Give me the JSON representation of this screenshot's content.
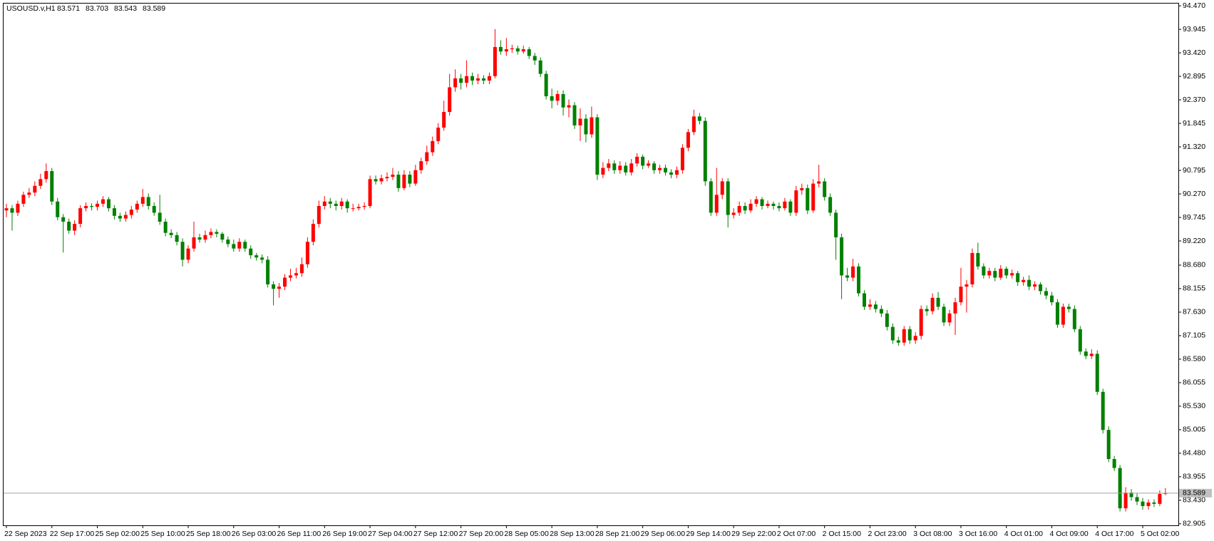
{
  "chart_data": {
    "type": "candlestick",
    "symbol": "USOUSD.v,H1",
    "up_color": "#ff0000",
    "down_color": "#008000",
    "grid": false,
    "ylim": [
      82.87,
      94.52
    ],
    "yticks": [
      {
        "value": 94.47,
        "label": "94.470"
      },
      {
        "value": 93.945,
        "label": "93.945"
      },
      {
        "value": 93.42,
        "label": "93.420"
      },
      {
        "value": 92.895,
        "label": "92.895"
      },
      {
        "value": 92.37,
        "label": "92.370"
      },
      {
        "value": 91.845,
        "label": "91.845"
      },
      {
        "value": 91.32,
        "label": "91.320"
      },
      {
        "value": 90.795,
        "label": "90.795"
      },
      {
        "value": 90.27,
        "label": "90.270"
      },
      {
        "value": 89.745,
        "label": "89.745"
      },
      {
        "value": 89.22,
        "label": "89.220"
      },
      {
        "value": 88.68,
        "label": "88.680"
      },
      {
        "value": 88.155,
        "label": "88.155"
      },
      {
        "value": 87.63,
        "label": "87.630"
      },
      {
        "value": 87.105,
        "label": "87.105"
      },
      {
        "value": 86.58,
        "label": "86.580"
      },
      {
        "value": 86.055,
        "label": "86.055"
      },
      {
        "value": 85.53,
        "label": "85.530"
      },
      {
        "value": 85.005,
        "label": "85.005"
      },
      {
        "value": 84.48,
        "label": "84.480"
      },
      {
        "value": 83.955,
        "label": "83.955"
      },
      {
        "value": 83.43,
        "label": "83.430"
      },
      {
        "value": 82.905,
        "label": "82.905"
      }
    ],
    "categories": [
      "22 Sep 2023",
      null,
      null,
      null,
      null,
      null,
      null,
      null,
      "22 Sep 17:00",
      null,
      null,
      null,
      null,
      null,
      null,
      null,
      "25 Sep 02:00",
      null,
      null,
      null,
      null,
      null,
      null,
      null,
      "25 Sep 10:00",
      null,
      null,
      null,
      null,
      null,
      null,
      null,
      "25 Sep 18:00",
      null,
      null,
      null,
      null,
      null,
      null,
      null,
      "26 Sep 03:00",
      null,
      null,
      null,
      null,
      null,
      null,
      null,
      "26 Sep 11:00",
      null,
      null,
      null,
      null,
      null,
      null,
      null,
      "26 Sep 19:00",
      null,
      null,
      null,
      null,
      null,
      null,
      null,
      "27 Sep 04:00",
      null,
      null,
      null,
      null,
      null,
      null,
      null,
      "27 Sep 12:00",
      null,
      null,
      null,
      null,
      null,
      null,
      null,
      "27 Sep 20:00",
      null,
      null,
      null,
      null,
      null,
      null,
      null,
      "28 Sep 05:00",
      null,
      null,
      null,
      null,
      null,
      null,
      null,
      "28 Sep 13:00",
      null,
      null,
      null,
      null,
      null,
      null,
      null,
      "28 Sep 21:00",
      null,
      null,
      null,
      null,
      null,
      null,
      null,
      "29 Sep 06:00",
      null,
      null,
      null,
      null,
      null,
      null,
      null,
      "29 Sep 14:00",
      null,
      null,
      null,
      null,
      null,
      null,
      null,
      "29 Sep 22:00",
      null,
      null,
      null,
      null,
      null,
      null,
      null,
      "2 Oct 07:00",
      null,
      null,
      null,
      null,
      null,
      null,
      null,
      "2 Oct 15:00",
      null,
      null,
      null,
      null,
      null,
      null,
      null,
      "2 Oct 23:00",
      null,
      null,
      null,
      null,
      null,
      null,
      null,
      "3 Oct 08:00",
      null,
      null,
      null,
      null,
      null,
      null,
      null,
      "3 Oct 16:00",
      null,
      null,
      null,
      null,
      null,
      null,
      null,
      "4 Oct 01:00",
      null,
      null,
      null,
      null,
      null,
      null,
      null,
      "4 Oct 09:00",
      null,
      null,
      null,
      null,
      null,
      null,
      null,
      "4 Oct 17:00",
      null,
      null,
      null,
      null,
      null,
      null,
      null,
      "5 Oct 02:00",
      null,
      null,
      null,
      null
    ],
    "ohlc": [
      [
        89.9,
        90.05,
        89.75,
        89.95
      ],
      [
        89.95,
        90.02,
        89.45,
        89.85
      ],
      [
        89.85,
        90.12,
        89.78,
        90.05
      ],
      [
        90.05,
        90.32,
        89.98,
        90.25
      ],
      [
        90.25,
        90.4,
        90.18,
        90.3
      ],
      [
        90.3,
        90.55,
        90.22,
        90.45
      ],
      [
        90.45,
        90.72,
        90.38,
        90.6
      ],
      [
        90.6,
        90.95,
        90.52,
        90.78
      ],
      [
        90.78,
        90.85,
        90.02,
        90.1
      ],
      [
        90.1,
        90.18,
        89.68,
        89.75
      ],
      [
        89.75,
        89.82,
        88.96,
        89.65
      ],
      [
        89.65,
        89.72,
        89.38,
        89.45
      ],
      [
        89.45,
        89.68,
        89.35,
        89.6
      ],
      [
        89.6,
        90.02,
        89.52,
        89.95
      ],
      [
        89.95,
        90.08,
        89.88,
        90.0
      ],
      [
        90.0,
        90.06,
        89.9,
        89.98
      ],
      [
        89.98,
        90.12,
        89.9,
        90.05
      ],
      [
        90.05,
        90.22,
        89.98,
        90.15
      ],
      [
        90.15,
        90.2,
        89.88,
        89.95
      ],
      [
        89.95,
        90.02,
        89.7,
        89.78
      ],
      [
        89.78,
        89.85,
        89.65,
        89.72
      ],
      [
        89.72,
        89.88,
        89.65,
        89.8
      ],
      [
        89.8,
        90.0,
        89.72,
        89.92
      ],
      [
        89.92,
        90.12,
        89.85,
        90.05
      ],
      [
        90.05,
        90.38,
        89.98,
        90.2
      ],
      [
        90.2,
        90.28,
        89.92,
        90.0
      ],
      [
        90.0,
        90.08,
        89.78,
        89.85
      ],
      [
        89.85,
        90.25,
        89.58,
        89.65
      ],
      [
        89.65,
        89.72,
        89.32,
        89.4
      ],
      [
        89.4,
        89.48,
        89.28,
        89.35
      ],
      [
        89.35,
        89.42,
        89.12,
        89.2
      ],
      [
        89.2,
        89.28,
        88.65,
        88.8
      ],
      [
        88.8,
        89.12,
        88.72,
        89.05
      ],
      [
        89.05,
        89.65,
        88.98,
        89.3
      ],
      [
        89.3,
        89.38,
        89.18,
        89.25
      ],
      [
        89.25,
        89.45,
        89.18,
        89.35
      ],
      [
        89.35,
        89.5,
        89.28,
        89.42
      ],
      [
        89.42,
        89.48,
        89.3,
        89.38
      ],
      [
        89.38,
        89.42,
        89.18,
        89.25
      ],
      [
        89.25,
        89.32,
        89.08,
        89.15
      ],
      [
        89.15,
        89.25,
        88.98,
        89.05
      ],
      [
        89.05,
        89.28,
        88.98,
        89.2
      ],
      [
        89.2,
        89.25,
        88.98,
        89.05
      ],
      [
        89.05,
        89.12,
        88.82,
        88.9
      ],
      [
        88.9,
        88.95,
        88.78,
        88.85
      ],
      [
        88.85,
        88.92,
        88.72,
        88.8
      ],
      [
        88.8,
        88.88,
        88.18,
        88.25
      ],
      [
        88.25,
        88.32,
        87.78,
        88.15
      ],
      [
        88.15,
        88.28,
        87.95,
        88.2
      ],
      [
        88.2,
        88.48,
        88.12,
        88.4
      ],
      [
        88.4,
        88.6,
        88.32,
        88.45
      ],
      [
        88.45,
        88.62,
        88.38,
        88.5
      ],
      [
        88.5,
        88.85,
        88.42,
        88.7
      ],
      [
        88.7,
        89.3,
        88.62,
        89.2
      ],
      [
        89.2,
        89.7,
        89.12,
        89.6
      ],
      [
        89.6,
        90.12,
        89.52,
        90.0
      ],
      [
        90.0,
        90.22,
        89.92,
        90.1
      ],
      [
        90.1,
        90.18,
        89.95,
        90.05
      ],
      [
        90.05,
        90.12,
        89.9,
        90.0
      ],
      [
        90.0,
        90.18,
        89.92,
        90.1
      ],
      [
        90.1,
        90.15,
        89.85,
        89.95
      ],
      [
        89.95,
        90.05,
        89.88,
        89.95
      ],
      [
        89.95,
        90.05,
        89.9,
        89.98
      ],
      [
        89.98,
        90.08,
        89.92,
        90.0
      ],
      [
        90.0,
        90.68,
        89.95,
        90.6
      ],
      [
        90.6,
        90.68,
        90.48,
        90.55
      ],
      [
        90.55,
        90.7,
        90.48,
        90.62
      ],
      [
        90.62,
        90.75,
        90.55,
        90.65
      ],
      [
        90.65,
        90.85,
        90.58,
        90.7
      ],
      [
        90.7,
        90.78,
        90.32,
        90.4
      ],
      [
        90.4,
        90.8,
        90.35,
        90.7
      ],
      [
        90.7,
        90.78,
        90.42,
        90.5
      ],
      [
        90.5,
        90.92,
        90.45,
        90.8
      ],
      [
        90.8,
        91.08,
        90.72,
        91.0
      ],
      [
        91.0,
        91.35,
        90.92,
        91.2
      ],
      [
        91.2,
        91.55,
        91.12,
        91.45
      ],
      [
        91.45,
        91.85,
        91.38,
        91.75
      ],
      [
        91.75,
        92.35,
        91.68,
        92.1
      ],
      [
        92.1,
        92.95,
        92.02,
        92.65
      ],
      [
        92.65,
        93.05,
        92.55,
        92.85
      ],
      [
        92.85,
        92.95,
        92.6,
        92.75
      ],
      [
        92.75,
        93.25,
        92.65,
        92.9
      ],
      [
        92.9,
        92.98,
        92.7,
        92.8
      ],
      [
        92.8,
        92.95,
        92.72,
        92.85
      ],
      [
        92.85,
        92.92,
        92.72,
        92.8
      ],
      [
        92.8,
        92.98,
        92.72,
        92.9
      ],
      [
        92.9,
        93.95,
        92.85,
        93.55
      ],
      [
        93.55,
        93.7,
        93.38,
        93.45
      ],
      [
        93.45,
        93.75,
        93.35,
        93.5
      ],
      [
        93.5,
        93.6,
        93.42,
        93.52
      ],
      [
        93.52,
        93.58,
        93.38,
        93.45
      ],
      [
        93.45,
        93.58,
        93.4,
        93.5
      ],
      [
        93.5,
        93.55,
        93.28,
        93.35
      ],
      [
        93.35,
        93.42,
        93.15,
        93.25
      ],
      [
        93.25,
        93.32,
        92.88,
        92.95
      ],
      [
        92.95,
        93.02,
        92.38,
        92.45
      ],
      [
        92.45,
        92.62,
        92.18,
        92.35
      ],
      [
        92.35,
        92.58,
        92.25,
        92.5
      ],
      [
        92.5,
        92.58,
        92.02,
        92.2
      ],
      [
        92.2,
        92.38,
        91.98,
        92.25
      ],
      [
        92.25,
        92.32,
        91.72,
        91.8
      ],
      [
        91.8,
        92.18,
        91.45,
        91.95
      ],
      [
        91.95,
        92.05,
        91.42,
        91.6
      ],
      [
        91.6,
        92.22,
        91.52,
        91.98
      ],
      [
        91.98,
        92.05,
        90.58,
        90.7
      ],
      [
        90.7,
        90.98,
        90.62,
        90.85
      ],
      [
        90.85,
        91.05,
        90.78,
        90.95
      ],
      [
        90.95,
        91.02,
        90.72,
        90.8
      ],
      [
        90.8,
        91.0,
        90.72,
        90.9
      ],
      [
        90.9,
        90.98,
        90.68,
        90.75
      ],
      [
        90.75,
        91.05,
        90.68,
        90.95
      ],
      [
        90.95,
        91.18,
        90.88,
        91.1
      ],
      [
        91.1,
        91.15,
        90.82,
        90.9
      ],
      [
        90.9,
        91.02,
        90.85,
        90.95
      ],
      [
        90.95,
        91.0,
        90.72,
        90.8
      ],
      [
        90.8,
        90.92,
        90.72,
        90.85
      ],
      [
        90.85,
        90.92,
        90.68,
        90.75
      ],
      [
        90.75,
        90.82,
        90.62,
        90.7
      ],
      [
        90.7,
        90.88,
        90.62,
        90.8
      ],
      [
        90.8,
        91.38,
        90.72,
        91.3
      ],
      [
        91.3,
        91.72,
        91.22,
        91.65
      ],
      [
        91.65,
        92.15,
        91.58,
        92.0
      ],
      [
        92.0,
        92.08,
        91.82,
        91.9
      ],
      [
        91.9,
        91.98,
        90.45,
        90.55
      ],
      [
        90.55,
        90.62,
        89.78,
        89.85
      ],
      [
        89.85,
        90.85,
        89.78,
        90.25
      ],
      [
        90.25,
        90.62,
        90.15,
        90.55
      ],
      [
        90.55,
        90.62,
        89.52,
        89.8
      ],
      [
        89.8,
        89.95,
        89.72,
        89.85
      ],
      [
        89.85,
        90.1,
        89.78,
        90.0
      ],
      [
        90.0,
        90.08,
        89.82,
        89.9
      ],
      [
        89.9,
        90.15,
        89.85,
        90.05
      ],
      [
        90.05,
        90.22,
        89.98,
        90.15
      ],
      [
        90.15,
        90.2,
        89.92,
        90.0
      ],
      [
        90.0,
        90.12,
        89.95,
        90.05
      ],
      [
        90.05,
        90.1,
        89.92,
        90.0
      ],
      [
        90.0,
        90.08,
        89.88,
        89.95
      ],
      [
        89.95,
        90.18,
        89.9,
        90.1
      ],
      [
        90.1,
        90.15,
        89.78,
        89.85
      ],
      [
        89.85,
        90.45,
        89.78,
        90.35
      ],
      [
        90.35,
        90.5,
        90.25,
        90.4
      ],
      [
        90.4,
        90.48,
        89.82,
        89.9
      ],
      [
        89.9,
        90.6,
        89.85,
        90.5
      ],
      [
        90.5,
        90.92,
        90.42,
        90.55
      ],
      [
        90.55,
        90.62,
        90.12,
        90.2
      ],
      [
        90.2,
        90.28,
        89.78,
        89.85
      ],
      [
        89.85,
        89.92,
        88.8,
        89.3
      ],
      [
        89.3,
        89.38,
        87.92,
        88.45
      ],
      [
        88.45,
        88.62,
        88.32,
        88.4
      ],
      [
        88.4,
        88.82,
        88.32,
        88.65
      ],
      [
        88.65,
        88.72,
        87.98,
        88.05
      ],
      [
        88.05,
        88.12,
        87.68,
        87.75
      ],
      [
        87.75,
        87.92,
        87.68,
        87.8
      ],
      [
        87.8,
        87.88,
        87.62,
        87.7
      ],
      [
        87.7,
        87.78,
        87.52,
        87.6
      ],
      [
        87.6,
        87.68,
        87.22,
        87.3
      ],
      [
        87.3,
        87.38,
        86.92,
        87.0
      ],
      [
        87.0,
        87.08,
        86.88,
        86.95
      ],
      [
        86.95,
        87.32,
        86.88,
        87.25
      ],
      [
        87.25,
        87.32,
        86.92,
        87.0
      ],
      [
        87.0,
        87.18,
        86.92,
        87.1
      ],
      [
        87.1,
        87.78,
        87.02,
        87.7
      ],
      [
        87.7,
        87.78,
        87.55,
        87.65
      ],
      [
        87.65,
        88.05,
        87.58,
        87.95
      ],
      [
        87.95,
        88.08,
        87.68,
        87.75
      ],
      [
        87.75,
        87.82,
        87.32,
        87.4
      ],
      [
        87.4,
        87.68,
        87.32,
        87.6
      ],
      [
        87.6,
        87.95,
        87.12,
        87.85
      ],
      [
        87.85,
        88.62,
        87.78,
        88.2
      ],
      [
        88.2,
        88.35,
        87.62,
        88.25
      ],
      [
        88.25,
        89.05,
        88.18,
        88.95
      ],
      [
        88.95,
        89.18,
        88.58,
        88.65
      ],
      [
        88.65,
        88.72,
        88.38,
        88.45
      ],
      [
        88.45,
        88.62,
        88.38,
        88.55
      ],
      [
        88.55,
        88.62,
        88.32,
        88.4
      ],
      [
        88.4,
        88.68,
        88.35,
        88.6
      ],
      [
        88.6,
        88.65,
        88.38,
        88.45
      ],
      [
        88.45,
        88.58,
        88.38,
        88.5
      ],
      [
        88.5,
        88.55,
        88.22,
        88.3
      ],
      [
        88.3,
        88.42,
        88.22,
        88.35
      ],
      [
        88.35,
        88.45,
        88.12,
        88.2
      ],
      [
        88.2,
        88.32,
        88.12,
        88.25
      ],
      [
        88.25,
        88.3,
        88.02,
        88.1
      ],
      [
        88.1,
        88.18,
        87.92,
        88.0
      ],
      [
        88.0,
        88.08,
        87.78,
        87.85
      ],
      [
        87.85,
        87.92,
        87.28,
        87.35
      ],
      [
        87.35,
        87.82,
        87.28,
        87.75
      ],
      [
        87.75,
        87.82,
        87.62,
        87.7
      ],
      [
        87.7,
        87.78,
        87.18,
        87.25
      ],
      [
        87.25,
        87.32,
        86.68,
        86.75
      ],
      [
        86.75,
        86.82,
        86.58,
        86.65
      ],
      [
        86.65,
        86.8,
        86.58,
        86.7
      ],
      [
        86.7,
        86.78,
        85.78,
        85.85
      ],
      [
        85.85,
        85.92,
        84.92,
        85.0
      ],
      [
        85.0,
        85.08,
        84.28,
        84.35
      ],
      [
        84.35,
        84.42,
        84.08,
        84.15
      ],
      [
        84.15,
        84.22,
        83.18,
        83.25
      ],
      [
        83.25,
        83.72,
        83.18,
        83.6
      ],
      [
        83.6,
        83.68,
        83.42,
        83.5
      ],
      [
        83.5,
        83.58,
        83.32,
        83.4
      ],
      [
        83.4,
        83.48,
        83.22,
        83.3
      ],
      [
        83.3,
        83.45,
        83.22,
        83.38
      ],
      [
        83.38,
        83.45,
        83.28,
        83.35
      ],
      [
        83.35,
        83.65,
        83.3,
        83.57
      ],
      [
        83.571,
        83.703,
        83.543,
        83.589
      ]
    ]
  }
}
